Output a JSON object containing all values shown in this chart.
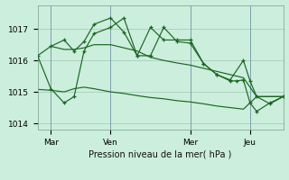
{
  "title": "Pression niveau de la mer( hPa )",
  "bg_color": "#cceedd",
  "grid_color": "#aaccbb",
  "line_color": "#1a6622",
  "ylim": [
    1013.8,
    1017.75
  ],
  "yticks": [
    1014,
    1015,
    1016,
    1017
  ],
  "xtick_labels": [
    "Mar",
    "Ven",
    "Mer",
    "Jeu"
  ],
  "xtick_positions": [
    8,
    44,
    92,
    128
  ],
  "vline_positions": [
    8,
    44,
    92,
    128
  ],
  "xlim": [
    0,
    148
  ],
  "smooth1_x": [
    0,
    8,
    16,
    22,
    28,
    34,
    44,
    52,
    60,
    68,
    76,
    84,
    92,
    100,
    108,
    116,
    124,
    132,
    140,
    148
  ],
  "smooth1_y": [
    1016.15,
    1016.45,
    1016.35,
    1016.35,
    1016.4,
    1016.5,
    1016.5,
    1016.4,
    1016.3,
    1016.1,
    1016.0,
    1015.92,
    1015.85,
    1015.75,
    1015.65,
    1015.55,
    1015.45,
    1014.85,
    1014.85,
    1014.85
  ],
  "smooth2_x": [
    0,
    8,
    16,
    22,
    28,
    34,
    44,
    52,
    60,
    68,
    76,
    84,
    92,
    100,
    108,
    116,
    124,
    132,
    140,
    148
  ],
  "smooth2_y": [
    1015.08,
    1015.05,
    1015.0,
    1015.1,
    1015.15,
    1015.1,
    1015.0,
    1014.95,
    1014.88,
    1014.82,
    1014.78,
    1014.72,
    1014.68,
    1014.62,
    1014.55,
    1014.5,
    1014.45,
    1014.85,
    1014.85,
    1014.85
  ],
  "jagged1_x": [
    8,
    16,
    22,
    28,
    34,
    44,
    52,
    60,
    68,
    76,
    84,
    92,
    100,
    108,
    116,
    124,
    128,
    132,
    140,
    148
  ],
  "jagged1_y": [
    1016.45,
    1016.65,
    1016.3,
    1016.6,
    1017.15,
    1017.35,
    1016.9,
    1016.15,
    1017.05,
    1016.65,
    1016.65,
    1016.65,
    1015.9,
    1015.55,
    1015.38,
    1016.0,
    1015.35,
    1014.85,
    1014.62,
    1014.85
  ],
  "jagged2_x": [
    0,
    8,
    16,
    22,
    28,
    34,
    44,
    52,
    60,
    68,
    76,
    84,
    92,
    100,
    108,
    116,
    120,
    124,
    128,
    132,
    140,
    148
  ],
  "jagged2_y": [
    1016.15,
    1015.1,
    1014.65,
    1014.85,
    1016.3,
    1016.85,
    1017.05,
    1017.35,
    1016.15,
    1016.15,
    1017.05,
    1016.6,
    1016.55,
    1015.9,
    1015.55,
    1015.35,
    1015.35,
    1015.38,
    1014.65,
    1014.38,
    1014.65,
    1014.85
  ]
}
